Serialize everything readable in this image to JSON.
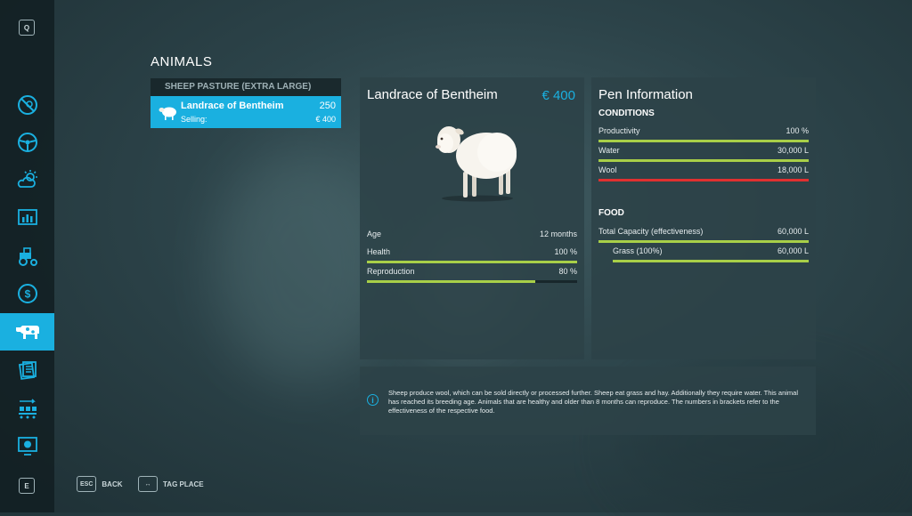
{
  "sidebar": {
    "top_key": "Q",
    "bottom_key": "E",
    "items": [
      {
        "icon": "no-entry-icon"
      },
      {
        "icon": "steering-wheel-icon"
      },
      {
        "icon": "weather-icon"
      },
      {
        "icon": "statistics-icon"
      },
      {
        "icon": "tractor-icon"
      },
      {
        "icon": "dollar-icon"
      },
      {
        "icon": "cow-icon",
        "active": true
      },
      {
        "icon": "contracts-icon"
      },
      {
        "icon": "production-icon"
      },
      {
        "icon": "help-screen-icon"
      }
    ],
    "accent": "#1ab0e0"
  },
  "screen": {
    "title": "ANIMALS"
  },
  "list": {
    "header": "SHEEP PASTURE (EXTRA LARGE)",
    "items": [
      {
        "name": "Landrace of Bentheim",
        "count": "250",
        "sell_label": "Selling:",
        "sell_price": "€ 400"
      }
    ]
  },
  "animal": {
    "name": "Landrace of Bentheim",
    "price": "€ 400",
    "stats": [
      {
        "label": "Age",
        "value": "12 months"
      },
      {
        "label": "Health",
        "value": "100 %",
        "fill": 1.0,
        "color": "#a8cf48"
      },
      {
        "label": "Reproduction",
        "value": "80 %",
        "fill": 0.8,
        "color": "#a8cf48"
      }
    ]
  },
  "pen": {
    "title": "Pen Information",
    "conditions_title": "CONDITIONS",
    "conditions": [
      {
        "label": "Productivity",
        "value": "100 %",
        "fill": 1.0,
        "color": "#a8cf48"
      },
      {
        "label": "Water",
        "value": "30,000 L",
        "fill": 1.0,
        "color": "#a8cf48"
      },
      {
        "label": "Wool",
        "value": "18,000 L",
        "fill": 1.0,
        "color": "#e03030"
      }
    ],
    "food_title": "FOOD",
    "food": [
      {
        "label": "Total Capacity (effectiveness)",
        "value": "60,000 L",
        "fill": 1.0,
        "color": "#a8cf48"
      },
      {
        "label": "Grass (100%)",
        "value": "60,000 L",
        "fill": 1.0,
        "color": "#a8cf48"
      }
    ]
  },
  "info": {
    "text": "Sheep produce wool, which can be sold directly or processed further. Sheep eat grass and hay. Additionally they require water. This animal has reached its breeding age. Animals that are healthy and older than 8 months can reproduce. The numbers in brackets refer to the effectiveness of the respective food."
  },
  "footer": {
    "back_key": "ESC",
    "back_label": "BACK",
    "tag_key": "↔",
    "tag_label": "TAG PLACE"
  }
}
